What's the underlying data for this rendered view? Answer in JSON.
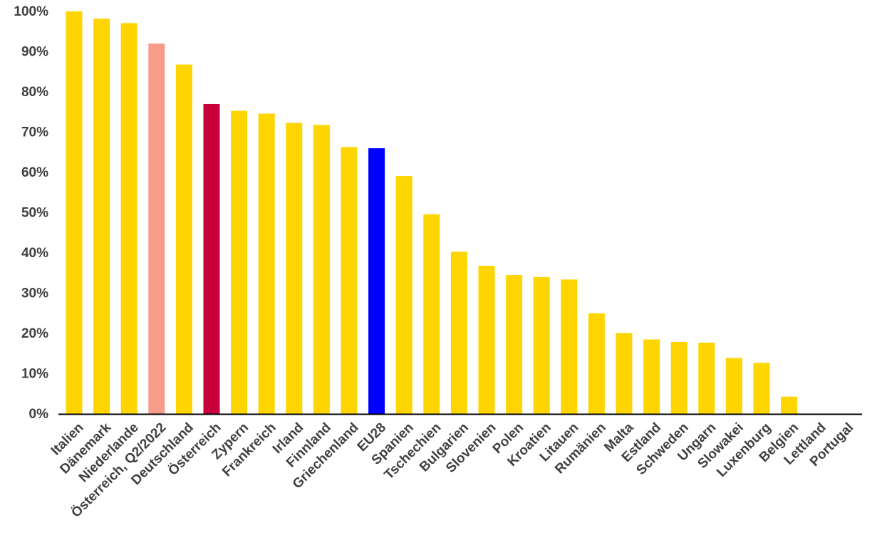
{
  "chart_data": {
    "type": "bar",
    "title": "",
    "xlabel": "",
    "ylabel": "",
    "ylim": [
      0,
      100
    ],
    "yticks": [
      0,
      10,
      20,
      30,
      40,
      50,
      60,
      70,
      80,
      90,
      100
    ],
    "ytick_labels": [
      "0%",
      "10%",
      "20%",
      "30%",
      "40%",
      "50%",
      "60%",
      "70%",
      "80%",
      "90%",
      "100%"
    ],
    "grid": false,
    "legend": "none",
    "categories": [
      "Italien",
      "Dänemark",
      "Niederlande",
      "Österreich, Q2/2022",
      "Deutschland",
      "Österreich",
      "Zypern",
      "Frankreich",
      "Irland",
      "Finnland",
      "Griechenland",
      "EU28",
      "Spanien",
      "Tschechien",
      "Bulgarien",
      "Slovenien",
      "Polen",
      "Kroatien",
      "Litauen",
      "Rumänien",
      "Malta",
      "Estland",
      "Schweden",
      "Ungarn",
      "Slowakei",
      "Luxenburg",
      "Belgien",
      "Lettland",
      "Portugal"
    ],
    "values": [
      100,
      98.2,
      97.1,
      92.0,
      86.8,
      77.0,
      75.3,
      74.6,
      72.3,
      71.8,
      66.3,
      66.0,
      59.1,
      49.6,
      40.3,
      36.8,
      34.5,
      34.0,
      33.4,
      25.0,
      20.1,
      18.5,
      17.9,
      17.7,
      13.9,
      12.7,
      4.3,
      0,
      0
    ],
    "colors": [
      "#FFD500",
      "#FFD500",
      "#FFD500",
      "#F79C8A",
      "#FFD500",
      "#C8003C",
      "#FFD500",
      "#FFD500",
      "#FFD500",
      "#FFD500",
      "#FFD500",
      "#0000FF",
      "#FFD500",
      "#FFD500",
      "#FFD500",
      "#FFD500",
      "#FFD500",
      "#FFD500",
      "#FFD500",
      "#FFD500",
      "#FFD500",
      "#FFD500",
      "#FFD500",
      "#FFD500",
      "#FFD500",
      "#FFD500",
      "#FFD500",
      "#FFD500",
      "#FFD500"
    ],
    "axis_color": "#000000",
    "text_color": "#404040"
  }
}
